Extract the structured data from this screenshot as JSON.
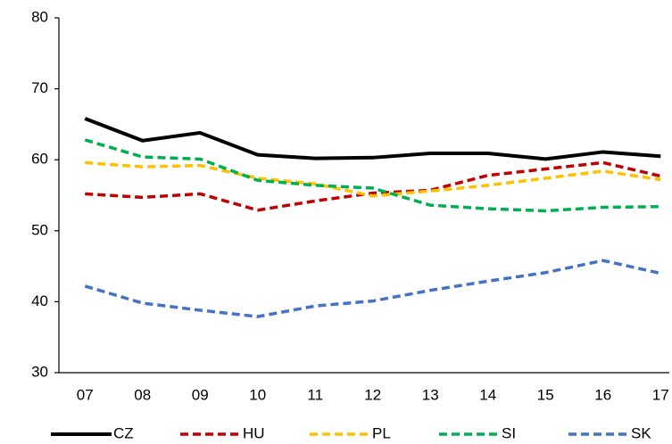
{
  "chart_data": {
    "type": "line",
    "categories": [
      "07",
      "08",
      "09",
      "10",
      "11",
      "12",
      "13",
      "14",
      "15",
      "16",
      "17"
    ],
    "series": [
      {
        "name": "CZ",
        "color": "#000000",
        "dashed": false,
        "values": [
          65.8,
          62.7,
          63.8,
          60.7,
          60.2,
          60.3,
          60.9,
          60.9,
          60.1,
          61.1,
          60.5
        ]
      },
      {
        "name": "HU",
        "color": "#c00000",
        "dashed": true,
        "values": [
          55.2,
          54.7,
          55.2,
          52.9,
          54.2,
          55.3,
          55.7,
          57.8,
          58.7,
          59.6,
          57.7
        ]
      },
      {
        "name": "PL",
        "color": "#ffc000",
        "dashed": true,
        "values": [
          59.6,
          59.0,
          59.2,
          57.4,
          56.6,
          54.9,
          55.6,
          56.4,
          57.4,
          58.4,
          57.2
        ]
      },
      {
        "name": "SI",
        "color": "#00b050",
        "dashed": true,
        "values": [
          62.8,
          60.4,
          60.1,
          57.1,
          56.4,
          56.0,
          53.6,
          53.1,
          52.8,
          53.3,
          53.4
        ]
      },
      {
        "name": "SK",
        "color": "#4472c4",
        "dashed": true,
        "values": [
          42.2,
          39.8,
          38.8,
          37.9,
          39.4,
          40.1,
          41.6,
          42.9,
          44.1,
          45.8,
          44.0
        ]
      }
    ],
    "ylim": [
      30,
      80
    ],
    "yticks": [
      30,
      40,
      50,
      60,
      70,
      80
    ],
    "grid": false,
    "legend": "bottom"
  }
}
